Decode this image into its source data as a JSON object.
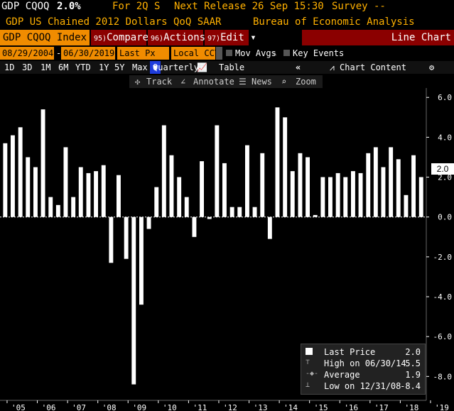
{
  "header": {
    "ticker": "GDP CQOQ",
    "value": "2.0%",
    "for_label": "For 2Q S",
    "next_release": "Next Release 26 Sep 15:30",
    "survey": "Survey --",
    "description": "GDP US Chained 2012 Dollars QoQ SAAR",
    "source": "Bureau of Economic Analysis"
  },
  "menu": {
    "index": "GDP CQOQ Index",
    "compare_num": "95)",
    "compare": "Compare",
    "actions_num": "96)",
    "actions": "Actions",
    "edit_num": "97)",
    "edit": "Edit",
    "line_chart": "Line Chart"
  },
  "controls": {
    "start_date": "08/29/2004",
    "end_date": "06/30/2019",
    "px": "Last Px",
    "ccy": "Local CCY",
    "mov_avgs": "Mov Avgs",
    "key_events": "Key Events"
  },
  "periods": [
    "1D",
    "3D",
    "1M",
    "6M",
    "YTD",
    "1Y",
    "5Y",
    "Max"
  ],
  "frequency": "Quarterly",
  "table_label": "Table",
  "chart_content": "Chart Content",
  "toolbar": {
    "track": "Track",
    "annotate": "Annotate",
    "news": "News",
    "zoom": "Zoom"
  },
  "colors": {
    "accent": "#f08c00",
    "bar": "#ffffff",
    "menu_red": "#8b0000",
    "quarterly": "#1e3cdc"
  },
  "chart_data": {
    "type": "bar",
    "ylim": [
      -9.2,
      6.4
    ],
    "yticks": [
      "6.0",
      "4.0",
      "2.0",
      "0.0",
      "-2.0",
      "-4.0",
      "-6.0",
      "-8.0"
    ],
    "xticks": [
      "'05",
      "'06",
      "'07",
      "'08",
      "'09",
      "'10",
      "'11",
      "'12",
      "'13",
      "'14",
      "'15",
      "'16",
      "'17",
      "'18",
      "'19"
    ],
    "values": [
      3.7,
      4.1,
      4.5,
      3.0,
      2.5,
      5.4,
      1.0,
      0.6,
      3.5,
      1.0,
      2.5,
      2.2,
      2.3,
      2.6,
      -2.3,
      2.1,
      -2.1,
      -8.4,
      -4.4,
      -0.6,
      1.5,
      4.6,
      3.1,
      2.0,
      1.0,
      -1.0,
      2.8,
      -0.1,
      4.6,
      2.7,
      0.5,
      0.5,
      3.6,
      0.5,
      3.2,
      -1.1,
      5.5,
      5.0,
      2.3,
      3.2,
      3.0,
      0.1,
      2.0,
      2.0,
      2.2,
      2.0,
      2.3,
      2.2,
      3.2,
      3.5,
      2.5,
      3.5,
      2.9,
      1.1,
      3.1,
      2.0
    ],
    "last_value": "2.0",
    "legend": [
      {
        "label": "Last Price",
        "value": "2.0"
      },
      {
        "label": "High on 06/30/14",
        "value": "5.5"
      },
      {
        "label": "Average",
        "value": "1.9"
      },
      {
        "label": "Low on 12/31/08",
        "value": "-8.4"
      }
    ]
  }
}
